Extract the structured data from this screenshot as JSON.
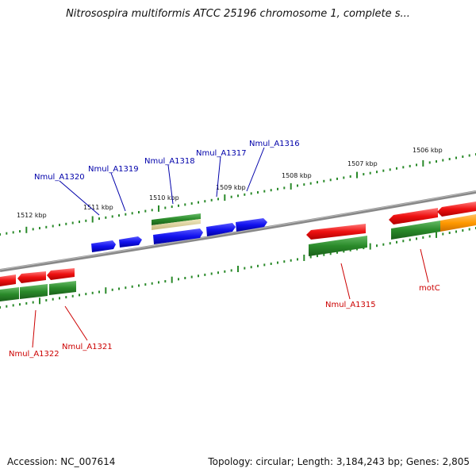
{
  "title": "Nitrosospira multiformis ATCC 25196 chromosome 1, complete s...",
  "footer": {
    "accession": "Accession: NC_007614",
    "stats": "Topology: circular; Length: 3,184,243 bp; Genes: 2,805"
  },
  "colors": {
    "backbone": "#888888",
    "tick": "#2a8a2a",
    "forward_gene_label": "#0000aa",
    "reverse_gene_label": "#cc0000",
    "red_gene": "#ee1111",
    "green_gene": "#2a8a2a",
    "blue_gene": "#1111ee",
    "orange_gene": "#ff9900",
    "tan_gene": "#d8cc90"
  },
  "ruler": {
    "labels": [
      "1506 kbp",
      "1507 kbp",
      "1508 kbp",
      "1509 kbp",
      "1510 kbp",
      "1511 kbp",
      "1512 kbp"
    ]
  },
  "gene_labels": {
    "forward": [
      "Nmul_A1316",
      "Nmul_A1317",
      "Nmul_A1318",
      "Nmul_A1319",
      "Nmul_A1320"
    ],
    "reverse": [
      "Nmul_A1315",
      "motC",
      "Nmul_A1321",
      "Nmul_A1322"
    ]
  }
}
